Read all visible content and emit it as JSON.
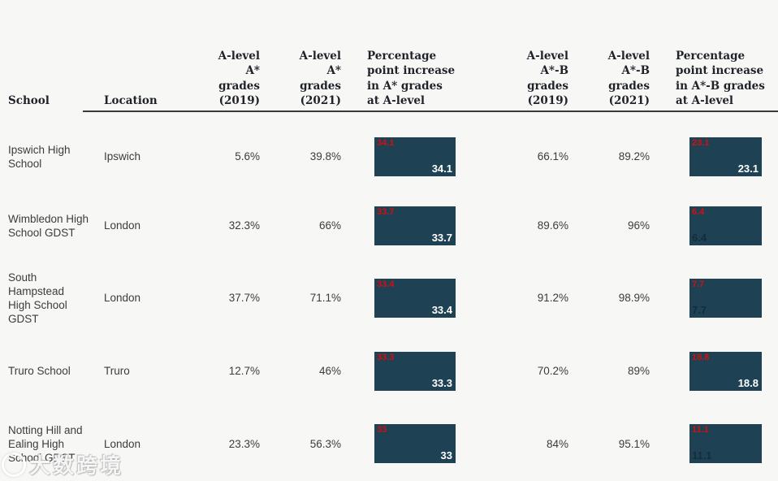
{
  "colors": {
    "background": "#F7F7F5",
    "bar_fill": "#1E4154",
    "bar_label_red": "#D21010",
    "bar_label_white": "#FFFFFF",
    "header_text": "#1F2229",
    "body_text": "#3C3C3C"
  },
  "columns": [
    {
      "label": "School"
    },
    {
      "label": "Location"
    },
    {
      "label": "A-level\nA*\ngrades\n(2019)"
    },
    {
      "label": "A-level\nA*\ngrades\n(2021)"
    },
    {
      "label": "Percentage\npoint increase\nin A* grades\nat A-level"
    },
    {
      "label": "A-level\nA*-B\ngrades\n(2019)"
    },
    {
      "label": "A-level\nA*-B\ngrades\n(2021)"
    },
    {
      "label": "Percentage\npoint increase\nin A*-B grades\nat A-level"
    }
  ],
  "rows": [
    {
      "school": "Ipswich High School",
      "location": "Ipswich",
      "astar_2019": "5.6%",
      "astar_2021": "39.8%",
      "astar_increase": {
        "value": 34.1,
        "label_top": "34.1",
        "label_bottom": "34.1"
      },
      "ab_2019": "66.1%",
      "ab_2021": "89.2%",
      "ab_increase": {
        "value": 23.1,
        "label_top": "23.1",
        "label_bottom": "23.1"
      }
    },
    {
      "school": "Wimbledon High School GDST",
      "location": "London",
      "astar_2019": "32.3%",
      "astar_2021": "66%",
      "astar_increase": {
        "value": 33.7,
        "label_top": "33.7",
        "label_bottom": "33.7"
      },
      "ab_2019": "89.6%",
      "ab_2021": "96%",
      "ab_increase": {
        "value": 6.4,
        "label_top": "6.4",
        "label_bottom": "6.4"
      }
    },
    {
      "school": "South Hampstead High School GDST",
      "location": "London",
      "astar_2019": "37.7%",
      "astar_2021": "71.1%",
      "astar_increase": {
        "value": 33.4,
        "label_top": "33.4",
        "label_bottom": "33.4"
      },
      "ab_2019": "91.2%",
      "ab_2021": "98.9%",
      "ab_increase": {
        "value": 7.7,
        "label_top": "7.7",
        "label_bottom": "7.7"
      }
    },
    {
      "school": "Truro School",
      "location": "Truro",
      "astar_2019": "12.7%",
      "astar_2021": "46%",
      "astar_increase": {
        "value": 33.3,
        "label_top": "33.3",
        "label_bottom": "33.3"
      },
      "ab_2019": "70.2%",
      "ab_2021": "89%",
      "ab_increase": {
        "value": 18.8,
        "label_top": "18.8",
        "label_bottom": "18.8"
      }
    },
    {
      "school": "Notting Hill and Ealing High School GDST",
      "location": "London",
      "astar_2019": "23.3%",
      "astar_2021": "56.3%",
      "astar_increase": {
        "value": 33,
        "label_top": "33",
        "label_bottom": "33"
      },
      "ab_2019": "84%",
      "ab_2021": "95.1%",
      "ab_increase": {
        "value": 11.1,
        "label_top": "11.1",
        "label_bottom": "11.1"
      }
    }
  ],
  "watermark": {
    "text": "大数跨境"
  },
  "chart_data": {
    "type": "table",
    "columns": [
      "School",
      "Location",
      "A-level A* grades (2019)",
      "A-level A* grades (2021)",
      "Percentage point increase in A* grades at A-level",
      "A-level A*-B grades (2019)",
      "A-level A*-B grades (2021)",
      "Percentage point increase in A*-B grades at A-level"
    ],
    "rows": [
      [
        "Ipswich High School",
        "Ipswich",
        "5.6%",
        "39.8%",
        34.1,
        "66.1%",
        "89.2%",
        23.1
      ],
      [
        "Wimbledon High School GDST",
        "London",
        "32.3%",
        "66%",
        33.7,
        "89.6%",
        "96%",
        6.4
      ],
      [
        "South Hampstead High School GDST",
        "London",
        "37.7%",
        "71.1%",
        33.4,
        "91.2%",
        "98.9%",
        7.7
      ],
      [
        "Truro School",
        "Truro",
        "12.7%",
        "46%",
        33.3,
        "70.2%",
        "89%",
        18.8
      ],
      [
        "Notting Hill and Ealing High School GDST",
        "London",
        "23.3%",
        "56.3%",
        33,
        "84%",
        "95.1%",
        11.1
      ]
    ],
    "notes": "Embedded cells in increase columns are dark teal bars with the value shown in red at top-left and repeated at bottom (white bottom-right for larger values, faint dark bottom-left for smaller values in the A*-B column)."
  }
}
